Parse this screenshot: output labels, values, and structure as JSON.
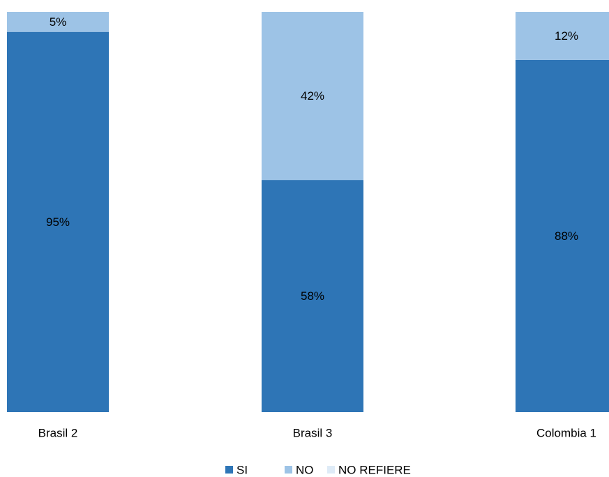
{
  "chart_data": {
    "type": "bar",
    "stacked": true,
    "percent_stacked": true,
    "categories": [
      "Brasil 2",
      "Brasil 3",
      "Colombia 1"
    ],
    "series": [
      {
        "name": "SI",
        "values": [
          95,
          58,
          88
        ],
        "labels": [
          "95%",
          "58%",
          "88%"
        ],
        "color": "#2E75B6"
      },
      {
        "name": "NO",
        "values": [
          5,
          42,
          12
        ],
        "labels": [
          "5%",
          "42%",
          "12%"
        ],
        "color": "#9DC3E6"
      },
      {
        "name": "NO REFIERE",
        "values": [
          0,
          0,
          0
        ],
        "labels": [
          "",
          "",
          ""
        ],
        "color": "#DEEBF7"
      }
    ],
    "ylim": [
      0,
      100
    ],
    "grid": false,
    "legend_position": "bottom"
  }
}
